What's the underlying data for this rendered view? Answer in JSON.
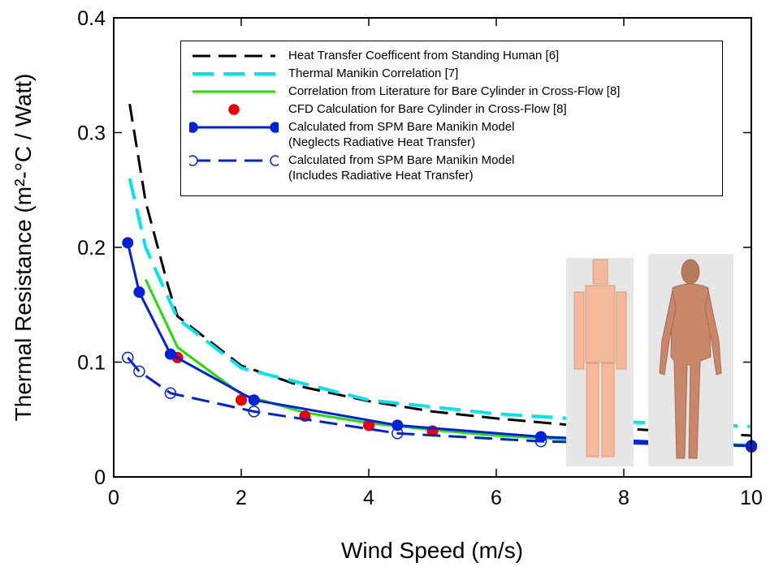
{
  "chart_data": {
    "type": "line",
    "xlabel": "Wind Speed (m/s)",
    "ylabel": "Thermal Resistance (m²-°C / Watt)",
    "xlim": [
      0,
      10
    ],
    "xticks": [
      0,
      2,
      4,
      6,
      8,
      10
    ],
    "ylim": [
      0,
      0.4
    ],
    "yticks": [
      0,
      0.1,
      0.2,
      0.3,
      0.4
    ],
    "series": [
      {
        "name": "Heat Transfer Coefficent from Standing Human [6]",
        "color": "#000000",
        "line_style": "dashed",
        "marker": "none",
        "x": [
          0.25,
          0.5,
          0.85,
          1,
          2,
          3,
          4,
          5,
          6,
          7,
          8,
          9,
          10
        ],
        "values": [
          0.325,
          0.24,
          0.167,
          0.14,
          0.097,
          0.078,
          0.066,
          0.057,
          0.051,
          0.046,
          0.042,
          0.039,
          0.036
        ]
      },
      {
        "name": "Thermal Manikin Correlation [7]",
        "color": "#00e5ee",
        "line_style": "dashed",
        "marker": "none",
        "x": [
          0.25,
          0.5,
          1,
          2,
          4,
          6,
          8,
          10
        ],
        "values": [
          0.26,
          0.2,
          0.138,
          0.095,
          0.067,
          0.055,
          0.048,
          0.044
        ]
      },
      {
        "name": "Correlation from Literature for Bare Cylinder in Cross-Flow [8]",
        "color": "#22dd00",
        "line_style": "solid",
        "marker": "none",
        "x": [
          0.5,
          1,
          2,
          3,
          4,
          5,
          6,
          7,
          8,
          9,
          10
        ],
        "values": [
          0.172,
          0.113,
          0.072,
          0.056,
          0.047,
          0.041,
          0.036,
          0.033,
          0.031,
          0.029,
          0.028
        ]
      },
      {
        "name": "CFD Calculation for Bare Cylinder in Cross-Flow [8]",
        "color": "#ee0000",
        "line_style": "none",
        "marker": "circle",
        "marker_fill": "filled",
        "x": [
          1,
          2,
          3,
          4,
          5,
          10
        ],
        "values": [
          0.104,
          0.067,
          0.053,
          0.045,
          0.04,
          0.026
        ]
      },
      {
        "name": "Calculated from SPM Bare Manikin Model\n(Neglects Radiative Heat Transfer)",
        "color": "#0022dd",
        "line_style": "solid",
        "marker": "circle",
        "marker_fill": "filled",
        "x": [
          0.22,
          0.4,
          0.89,
          2.2,
          4.45,
          6.7,
          10
        ],
        "values": [
          0.204,
          0.161,
          0.107,
          0.067,
          0.045,
          0.035,
          0.027
        ]
      },
      {
        "name": "Calculated from SPM Bare Manikin Model\n(Includes Radiative Heat Transfer)",
        "color": "#0022dd",
        "line_style": "dashed",
        "marker": "circle",
        "marker_fill": "open",
        "x": [
          0.22,
          0.4,
          0.89,
          2.2,
          4.45,
          6.7,
          10
        ],
        "values": [
          0.104,
          0.092,
          0.073,
          0.057,
          0.038,
          0.031,
          0.027
        ]
      }
    ]
  }
}
